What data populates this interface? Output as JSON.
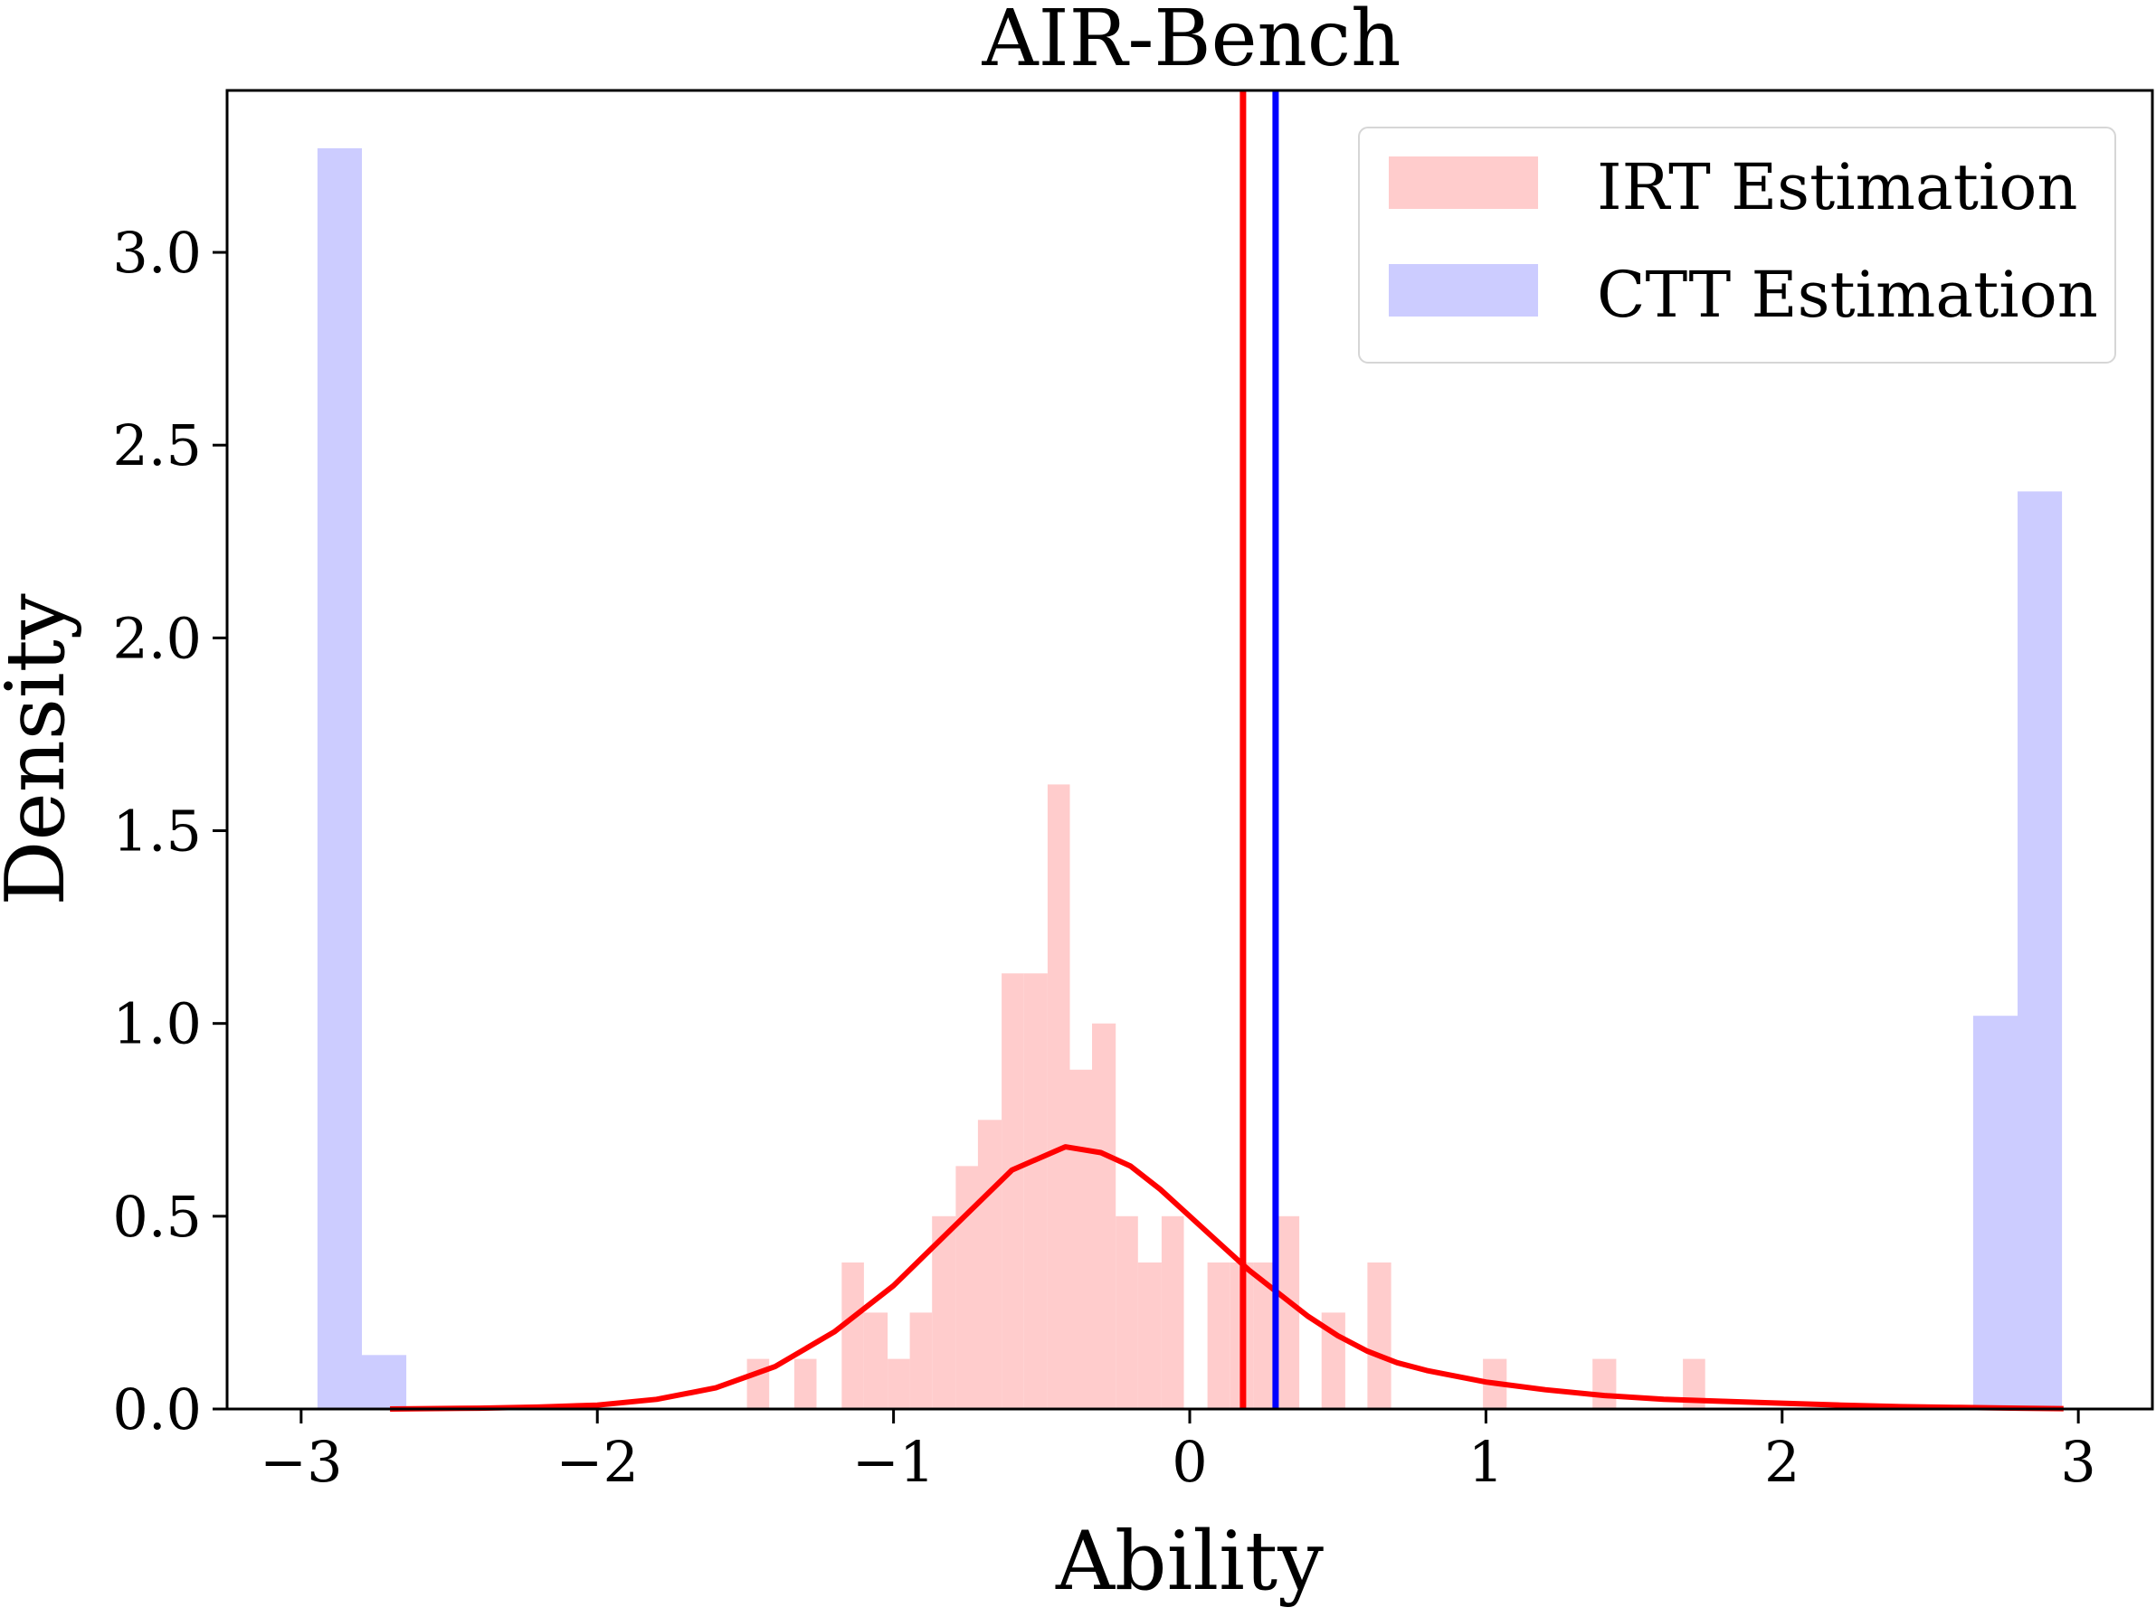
{
  "chart_data": {
    "type": "histogram",
    "title": "AIR-Bench",
    "xlabel": "Ability",
    "ylabel": "Density",
    "xlim": [
      -3.25,
      3.25
    ],
    "ylim": [
      0,
      3.42
    ],
    "xticks": [
      {
        "value": -3,
        "label": "−3"
      },
      {
        "value": -2,
        "label": "−2"
      },
      {
        "value": -1,
        "label": "−1"
      },
      {
        "value": 0,
        "label": "0"
      },
      {
        "value": 1,
        "label": "1"
      },
      {
        "value": 2,
        "label": "2"
      },
      {
        "value": 3,
        "label": "3"
      }
    ],
    "yticks": [
      {
        "value": 0.0,
        "label": "0.0"
      },
      {
        "value": 0.5,
        "label": "0.5"
      },
      {
        "value": 1.0,
        "label": "1.0"
      },
      {
        "value": 1.5,
        "label": "1.5"
      },
      {
        "value": 2.0,
        "label": "2.0"
      },
      {
        "value": 2.5,
        "label": "2.5"
      },
      {
        "value": 3.0,
        "label": "3.0"
      }
    ],
    "legend": {
      "location": "upper right",
      "entries": [
        {
          "label": "IRT Estimation",
          "color": "#ffcccc"
        },
        {
          "label": "CTT Estimation",
          "color": "#ccccff"
        }
      ]
    },
    "series": [
      {
        "name": "IRT Estimation",
        "color": "#ffcccc",
        "bins": [
          {
            "x0": -1.495,
            "x1": -1.42,
            "density": 0.13
          },
          {
            "x0": -1.335,
            "x1": -1.26,
            "density": 0.13
          },
          {
            "x0": -1.175,
            "x1": -1.1,
            "density": 0.38
          },
          {
            "x0": -1.1,
            "x1": -1.02,
            "density": 0.25
          },
          {
            "x0": -1.02,
            "x1": -0.945,
            "density": 0.13
          },
          {
            "x0": -0.945,
            "x1": -0.87,
            "density": 0.25
          },
          {
            "x0": -0.87,
            "x1": -0.79,
            "density": 0.5
          },
          {
            "x0": -0.79,
            "x1": -0.715,
            "density": 0.63
          },
          {
            "x0": -0.715,
            "x1": -0.635,
            "density": 0.75
          },
          {
            "x0": -0.635,
            "x1": -0.56,
            "density": 1.13
          },
          {
            "x0": -0.56,
            "x1": -0.48,
            "density": 1.13
          },
          {
            "x0": -0.48,
            "x1": -0.405,
            "density": 1.62
          },
          {
            "x0": -0.405,
            "x1": -0.33,
            "density": 0.88
          },
          {
            "x0": -0.33,
            "x1": -0.25,
            "density": 1.0
          },
          {
            "x0": -0.25,
            "x1": -0.175,
            "density": 0.5
          },
          {
            "x0": -0.175,
            "x1": -0.095,
            "density": 0.38
          },
          {
            "x0": -0.095,
            "x1": -0.02,
            "density": 0.5
          },
          {
            "x0": 0.06,
            "x1": 0.135,
            "density": 0.38
          },
          {
            "x0": 0.135,
            "x1": 0.215,
            "density": 0.38
          },
          {
            "x0": 0.215,
            "x1": 0.29,
            "density": 0.38
          },
          {
            "x0": 0.29,
            "x1": 0.37,
            "density": 0.5
          },
          {
            "x0": 0.445,
            "x1": 0.525,
            "density": 0.25
          },
          {
            "x0": 0.6,
            "x1": 0.68,
            "density": 0.38
          },
          {
            "x0": 0.99,
            "x1": 1.07,
            "density": 0.13
          },
          {
            "x0": 1.36,
            "x1": 1.44,
            "density": 0.13
          },
          {
            "x0": 1.665,
            "x1": 1.74,
            "density": 0.13
          }
        ]
      },
      {
        "name": "CTT Estimation",
        "color": "#ccccff",
        "bins": [
          {
            "x0": -2.945,
            "x1": -2.795,
            "density": 3.27
          },
          {
            "x0": -2.795,
            "x1": -2.645,
            "density": 0.14
          },
          {
            "x0": 2.645,
            "x1": 2.795,
            "density": 1.02
          },
          {
            "x0": 2.795,
            "x1": 2.945,
            "density": 2.38
          }
        ]
      }
    ],
    "density_curve": {
      "series": "IRT Estimation",
      "color": "#ff0000",
      "points": [
        [
          -2.7,
          0.0
        ],
        [
          -2.4,
          0.002
        ],
        [
          -2.2,
          0.005
        ],
        [
          -2.0,
          0.01
        ],
        [
          -1.8,
          0.025
        ],
        [
          -1.6,
          0.055
        ],
        [
          -1.4,
          0.11
        ],
        [
          -1.2,
          0.2
        ],
        [
          -1.0,
          0.32
        ],
        [
          -0.8,
          0.47
        ],
        [
          -0.6,
          0.62
        ],
        [
          -0.42,
          0.68
        ],
        [
          -0.3,
          0.665
        ],
        [
          -0.2,
          0.63
        ],
        [
          -0.1,
          0.57
        ],
        [
          0.0,
          0.5
        ],
        [
          0.1,
          0.43
        ],
        [
          0.2,
          0.36
        ],
        [
          0.3,
          0.3
        ],
        [
          0.4,
          0.24
        ],
        [
          0.5,
          0.19
        ],
        [
          0.6,
          0.15
        ],
        [
          0.7,
          0.12
        ],
        [
          0.8,
          0.1
        ],
        [
          1.0,
          0.07
        ],
        [
          1.2,
          0.05
        ],
        [
          1.4,
          0.035
        ],
        [
          1.6,
          0.025
        ],
        [
          1.8,
          0.02
        ],
        [
          2.0,
          0.015
        ],
        [
          2.2,
          0.01
        ],
        [
          2.4,
          0.006
        ],
        [
          2.6,
          0.004
        ],
        [
          2.8,
          0.002
        ],
        [
          2.95,
          0.001
        ]
      ]
    },
    "mean_lines": [
      {
        "series": "IRT Estimation",
        "x": 0.18,
        "color": "#ff0000"
      },
      {
        "series": "CTT Estimation",
        "x": 0.29,
        "color": "#0000ff"
      }
    ],
    "grid": false
  }
}
